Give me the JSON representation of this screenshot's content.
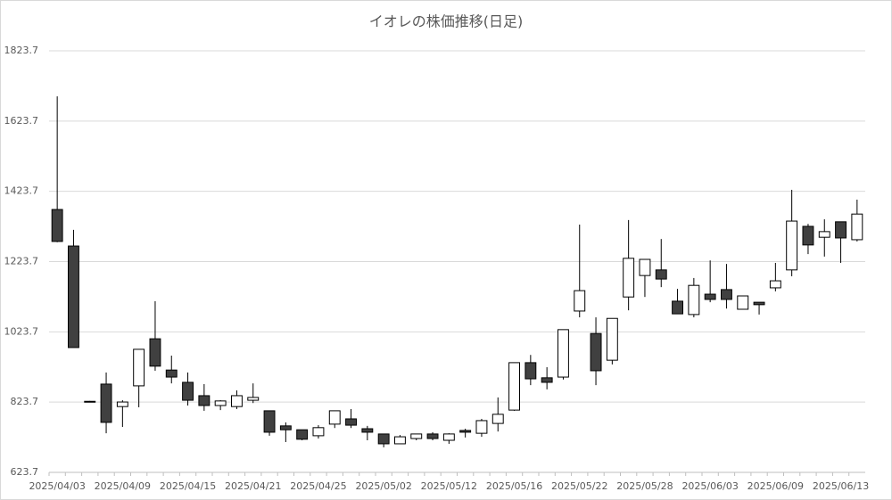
{
  "chart_data": {
    "type": "candlestick",
    "title": "イオレの株価推移(日足)",
    "categories": [
      "2025/04/03",
      null,
      null,
      null,
      "2025/04/09",
      null,
      null,
      null,
      "2025/04/15",
      null,
      null,
      null,
      "2025/04/21",
      null,
      null,
      null,
      "2025/04/25",
      null,
      null,
      null,
      "2025/05/02",
      null,
      null,
      null,
      "2025/05/12",
      null,
      null,
      null,
      "2025/05/16",
      null,
      null,
      null,
      "2025/05/22",
      null,
      null,
      null,
      "2025/05/28",
      null,
      null,
      null,
      "2025/06/03",
      null,
      null,
      null,
      "2025/06/09",
      null,
      null,
      null,
      "2025/06/13",
      null
    ],
    "open": [
      1372,
      1268,
      826,
      875,
      811,
      870,
      1004,
      915,
      880,
      842,
      814,
      811,
      829,
      799,
      756,
      745,
      728,
      761,
      776,
      748,
      733,
      705,
      720,
      733,
      715,
      743,
      735,
      763,
      801,
      936,
      893,
      895,
      1083,
      1019,
      943,
      1123,
      1184,
      1200,
      1111,
      1073,
      1131,
      1144,
      1088,
      1108,
      1149,
      1200,
      1324,
      1293,
      1337,
      1286
    ],
    "high": [
      1694,
      1314,
      827,
      908,
      829,
      974,
      1111,
      956,
      908,
      875,
      829,
      857,
      877,
      799,
      766,
      745,
      758,
      799,
      804,
      756,
      733,
      730,
      733,
      738,
      735,
      748,
      776,
      837,
      936,
      958,
      923,
      1030,
      1329,
      1065,
      1062,
      1342,
      1230,
      1288,
      1146,
      1177,
      1227,
      1217,
      1126,
      1108,
      1220,
      1428,
      1331,
      1344,
      1337,
      1400
    ],
    "low": [
      1279,
      979,
      825,
      735,
      753,
      809,
      913,
      877,
      814,
      799,
      801,
      804,
      821,
      728,
      710,
      715,
      720,
      750,
      750,
      715,
      695,
      705,
      715,
      715,
      705,
      723,
      725,
      740,
      799,
      872,
      860,
      888,
      1065,
      872,
      931,
      1085,
      1123,
      1151,
      1075,
      1065,
      1108,
      1090,
      1088,
      1073,
      1139,
      1182,
      1245,
      1238,
      1220,
      1281
    ],
    "close": [
      1281,
      979,
      826,
      766,
      824,
      974,
      926,
      895,
      829,
      814,
      827,
      842,
      837,
      738,
      745,
      718,
      751,
      799,
      758,
      738,
      705,
      725,
      733,
      720,
      733,
      738,
      771,
      789,
      936,
      890,
      880,
      1030,
      1141,
      913,
      1062,
      1233,
      1230,
      1174,
      1075,
      1156,
      1116,
      1116,
      1126,
      1101,
      1169,
      1339,
      1271,
      1309,
      1291,
      1359
    ],
    "up_color": "#ffffff",
    "down_color": "#404040",
    "edge_color": "#000000",
    "grid_color": "#d9d9d9",
    "ylim": [
      623.7,
      1823.7
    ],
    "yticks": [
      623.7,
      823.7,
      1023.7,
      1223.7,
      1423.7,
      1623.7,
      1823.7
    ],
    "grid": true
  }
}
